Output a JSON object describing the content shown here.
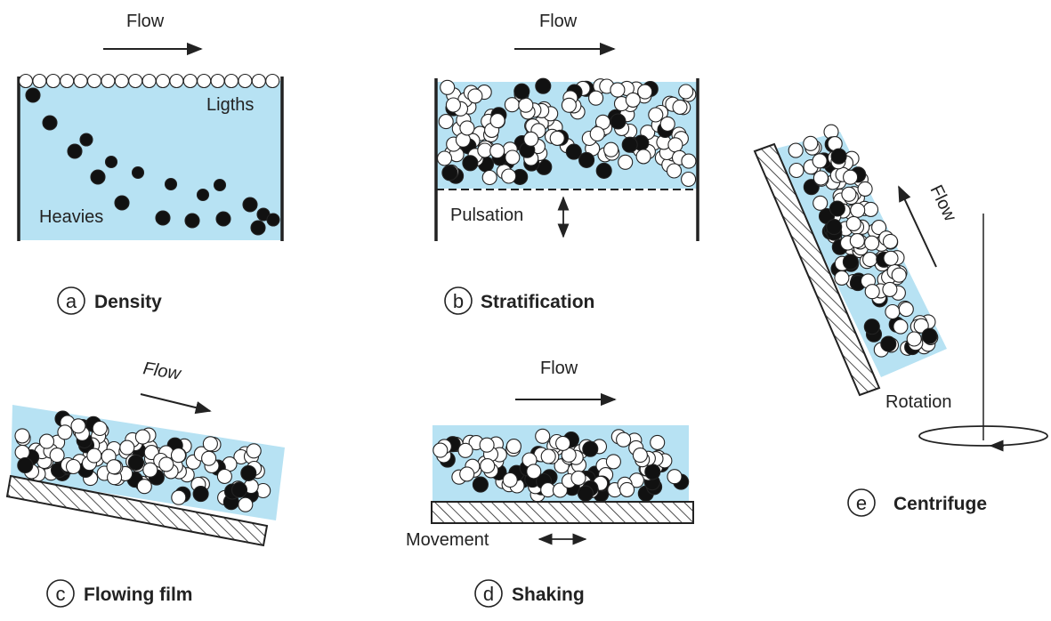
{
  "colors": {
    "fluid": "#b7e2f3",
    "heavy": "#111111",
    "light": "#ffffff",
    "outline": "#222222"
  },
  "panels": {
    "density": {
      "letter": "a",
      "caption": "Density",
      "flow": "Flow",
      "lights": "Ligths",
      "heavies": "Heavies"
    },
    "stratification": {
      "letter": "b",
      "caption": "Stratification",
      "flow": "Flow",
      "pulsation": "Pulsation"
    },
    "flowing_film": {
      "letter": "c",
      "caption": "Flowing film",
      "flow": "Flow"
    },
    "shaking": {
      "letter": "d",
      "caption": "Shaking",
      "flow": "Flow",
      "movement": "Movement"
    },
    "centrifuge": {
      "letter": "e",
      "caption": "Centrifuge",
      "flow": "Flow",
      "rotation": "Rotation"
    }
  }
}
